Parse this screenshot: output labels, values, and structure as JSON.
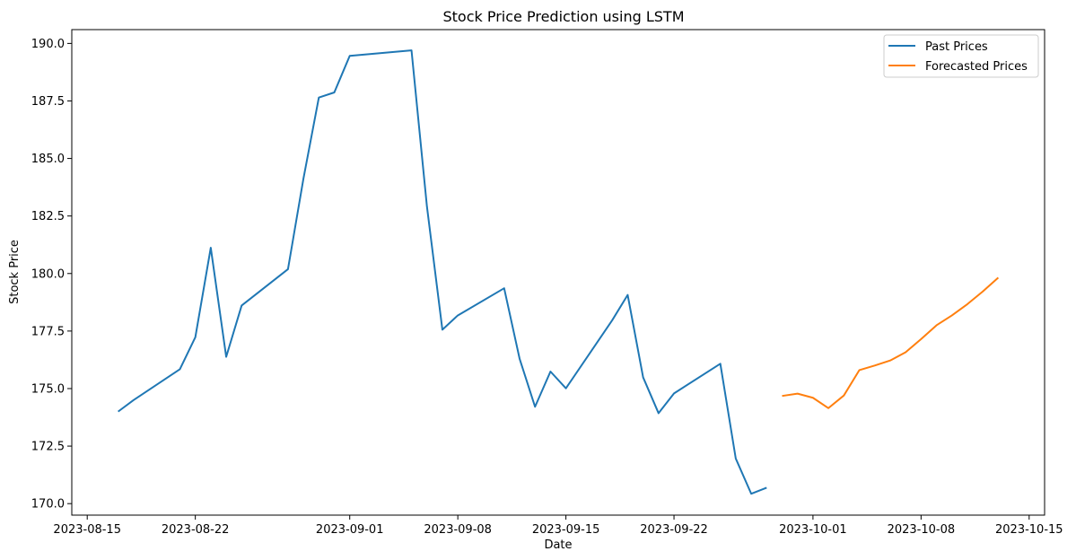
{
  "chart_data": {
    "type": "line",
    "title": "Stock Price Prediction using LSTM",
    "xlabel": "Date",
    "ylabel": "Stock Price",
    "x_axis_type": "date",
    "xlim": [
      "2023-08-14",
      "2023-10-16"
    ],
    "ylim": [
      169.5,
      190.6
    ],
    "x_ticks": [
      "2023-08-15",
      "2023-08-22",
      "2023-09-01",
      "2023-09-08",
      "2023-09-15",
      "2023-09-22",
      "2023-10-01",
      "2023-10-08",
      "2023-10-15"
    ],
    "y_ticks": [
      170.0,
      172.5,
      175.0,
      177.5,
      180.0,
      182.5,
      185.0,
      187.5,
      190.0
    ],
    "grid": false,
    "legend_position": "top-right",
    "series": [
      {
        "name": "Past Prices",
        "color": "#1f77b4",
        "points": [
          [
            "2023-08-17",
            174.0
          ],
          [
            "2023-08-18",
            174.5
          ],
          [
            "2023-08-21",
            175.84
          ],
          [
            "2023-08-22",
            177.23
          ],
          [
            "2023-08-23",
            181.12
          ],
          [
            "2023-08-24",
            176.38
          ],
          [
            "2023-08-25",
            178.61
          ],
          [
            "2023-08-28",
            180.19
          ],
          [
            "2023-08-29",
            184.12
          ],
          [
            "2023-08-30",
            187.65
          ],
          [
            "2023-08-31",
            187.87
          ],
          [
            "2023-09-01",
            189.46
          ],
          [
            "2023-09-05",
            189.7
          ],
          [
            "2023-09-06",
            182.91
          ],
          [
            "2023-09-07",
            177.56
          ],
          [
            "2023-09-08",
            178.18
          ],
          [
            "2023-09-11",
            179.36
          ],
          [
            "2023-09-12",
            176.3
          ],
          [
            "2023-09-13",
            174.21
          ],
          [
            "2023-09-14",
            175.74
          ],
          [
            "2023-09-15",
            175.01
          ],
          [
            "2023-09-18",
            177.97
          ],
          [
            "2023-09-19",
            179.07
          ],
          [
            "2023-09-20",
            175.49
          ],
          [
            "2023-09-21",
            173.93
          ],
          [
            "2023-09-22",
            174.79
          ],
          [
            "2023-09-25",
            176.08
          ],
          [
            "2023-09-26",
            171.96
          ],
          [
            "2023-09-27",
            170.43
          ],
          [
            "2023-09-28",
            170.69
          ]
        ]
      },
      {
        "name": "Forecasted Prices",
        "color": "#ff7f0e",
        "points": [
          [
            "2023-09-29",
            174.68
          ],
          [
            "2023-09-30",
            174.78
          ],
          [
            "2023-10-01",
            174.6
          ],
          [
            "2023-10-02",
            174.15
          ],
          [
            "2023-10-03",
            174.7
          ],
          [
            "2023-10-04",
            175.8
          ],
          [
            "2023-10-05",
            176.0
          ],
          [
            "2023-10-06",
            176.22
          ],
          [
            "2023-10-07",
            176.58
          ],
          [
            "2023-10-08",
            177.15
          ],
          [
            "2023-10-09",
            177.75
          ],
          [
            "2023-10-10",
            178.18
          ],
          [
            "2023-10-11",
            178.67
          ],
          [
            "2023-10-12",
            179.22
          ],
          [
            "2023-10-13",
            179.82
          ]
        ]
      }
    ]
  }
}
